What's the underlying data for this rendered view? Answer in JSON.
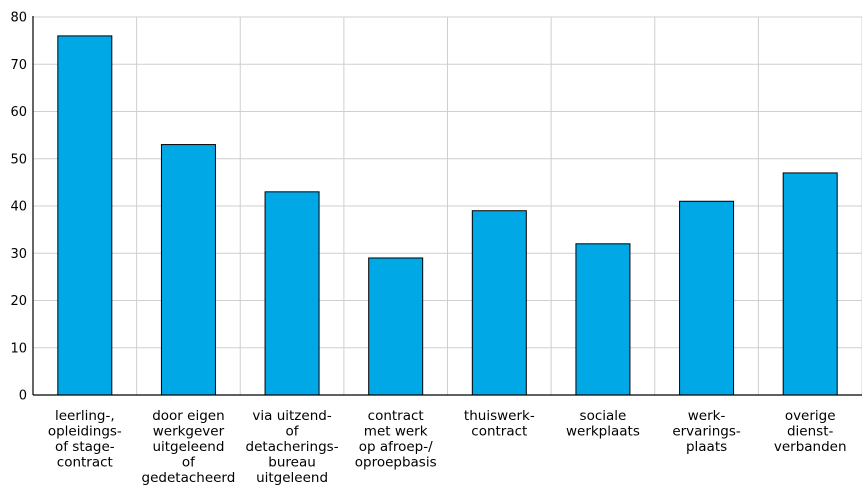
{
  "chart_data": {
    "type": "bar",
    "categories": [
      [
        "leerling-,",
        "opleidings-",
        "of stage-",
        "contract"
      ],
      [
        "door eigen",
        "werkgever",
        "uitgeleend",
        "of",
        "gedetacheerd"
      ],
      [
        "via uitzend-",
        "of",
        "detacherings-",
        "bureau",
        "uitgeleend"
      ],
      [
        "contract",
        "met werk",
        "op afroep-/",
        "oproepbasis"
      ],
      [
        "thuiswerk-",
        "contract"
      ],
      [
        "sociale",
        "werkplaats"
      ],
      [
        "werk-",
        "ervarings-",
        "plaats"
      ],
      [
        "overige",
        "dienst-",
        "verbanden"
      ]
    ],
    "values": [
      76,
      53,
      43,
      29,
      39,
      32,
      41,
      47
    ],
    "ylim": [
      0,
      80
    ],
    "yticks": [
      0,
      10,
      20,
      30,
      40,
      50,
      60,
      70,
      80
    ],
    "grid": true,
    "colors": {
      "bar": "#00a8e6",
      "grid": "#cfcfcf"
    }
  }
}
